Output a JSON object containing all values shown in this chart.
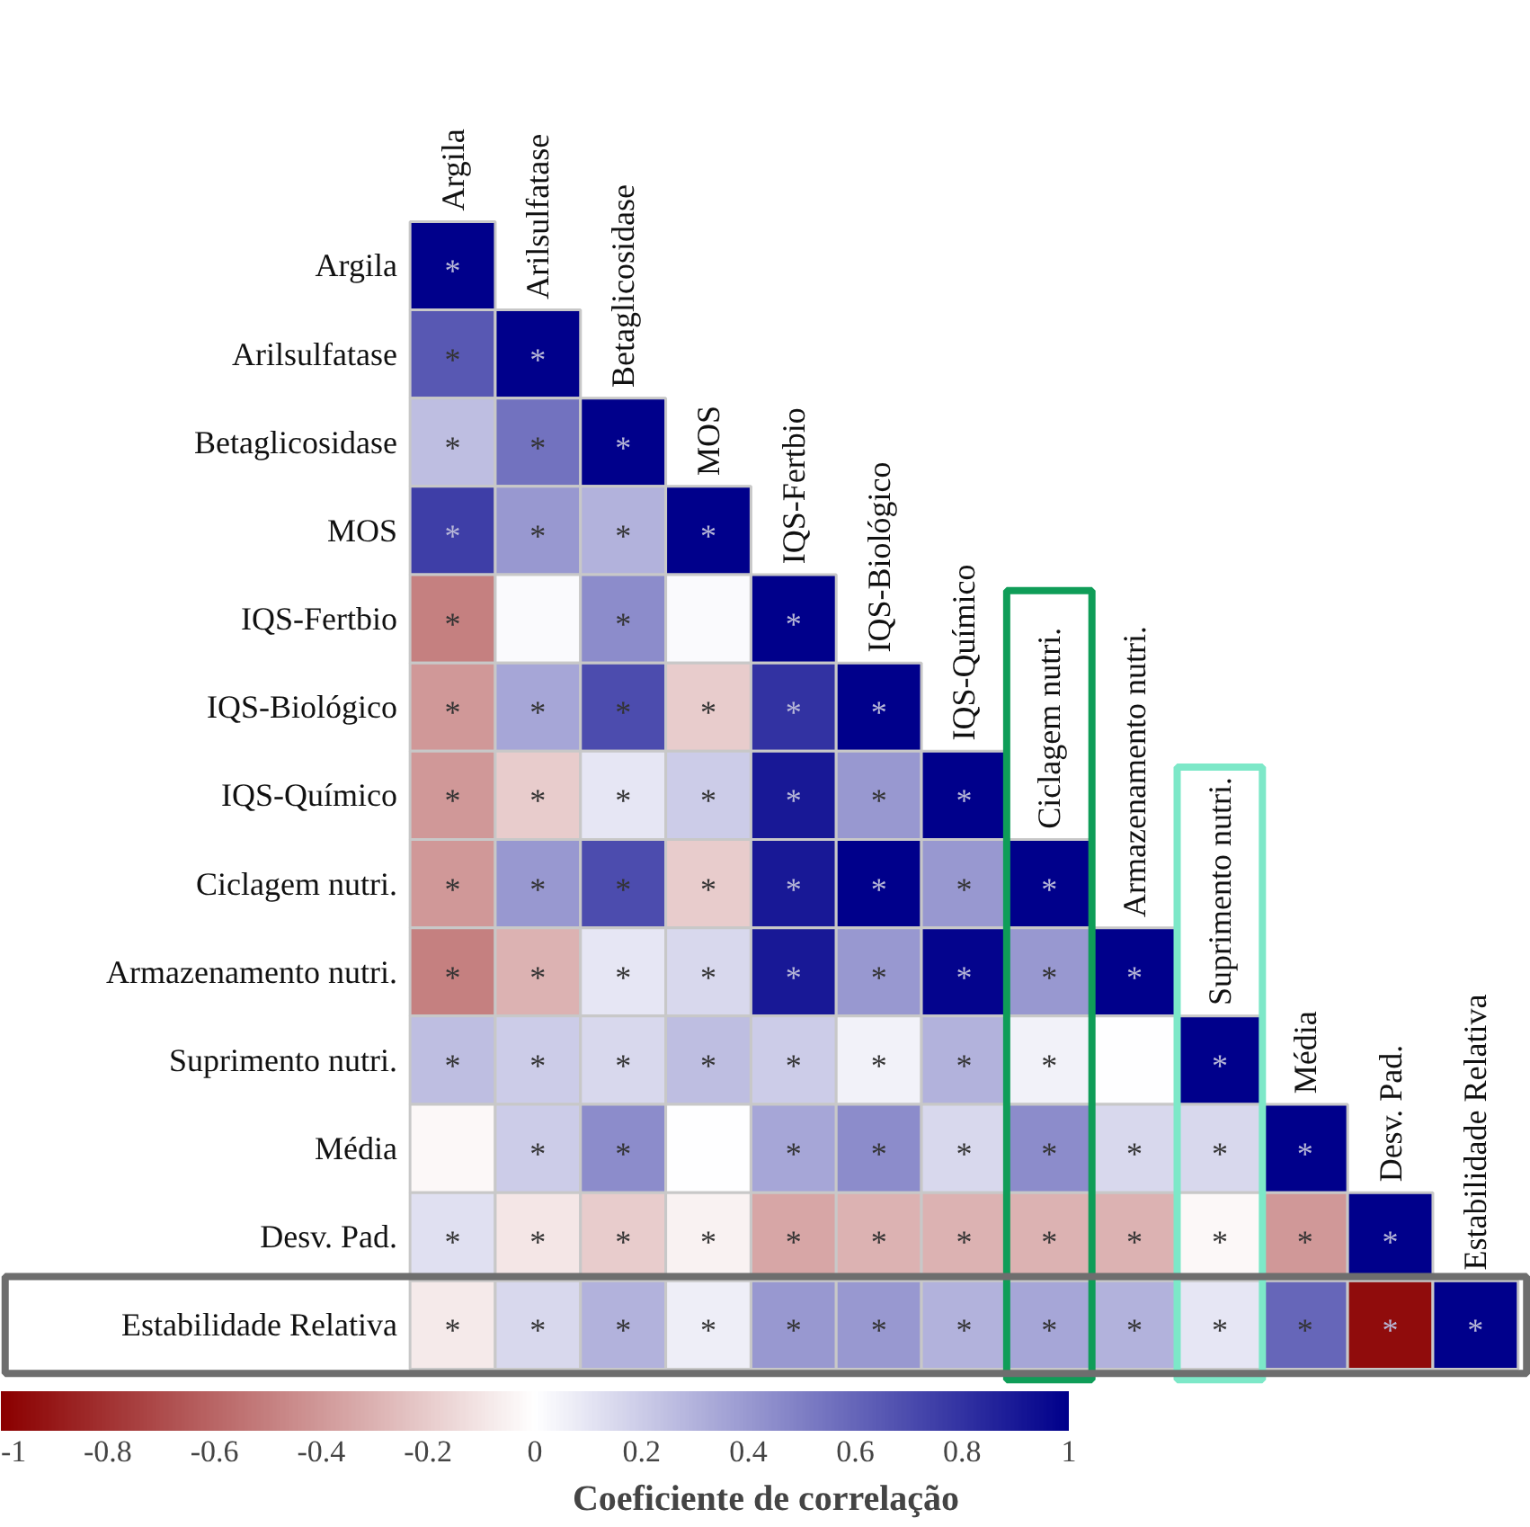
{
  "chart_data": {
    "type": "heatmap",
    "categories": [
      "Argila",
      "Arilsulfatase",
      "Betaglicosidase",
      "MOS",
      "IQS-Fertbio",
      "IQS-Biológico",
      "IQS-Químico",
      "Ciclagem nutri.",
      "Armazenamento nutri.",
      "Suprimento nutri.",
      "Média",
      "Desv. Pad.",
      "Estabilidade Relativa"
    ],
    "y_categories": [
      "Argila",
      "Arilsulfatase",
      "Betaglicosidase",
      "MOS",
      "IQS-Fertbio",
      "IQS-Biológico",
      "IQS-Químico",
      "Ciclagem nutri.",
      "Armazenamento nutri.",
      "Suprimento nutri.",
      "Média",
      "Desv. Pad.",
      "Estabilidade Relativa"
    ],
    "cells": [
      [
        1,
        null,
        null,
        null,
        null,
        null,
        null,
        null,
        null,
        null,
        null,
        null,
        null
      ],
      [
        0.65,
        1,
        null,
        null,
        null,
        null,
        null,
        null,
        null,
        null,
        null,
        null,
        null
      ],
      [
        0.25,
        0.55,
        1,
        null,
        null,
        null,
        null,
        null,
        null,
        null,
        null,
        null,
        null
      ],
      [
        0.75,
        0.4,
        0.3,
        1,
        null,
        null,
        null,
        null,
        null,
        null,
        null,
        null,
        null
      ],
      [
        -0.5,
        0.02,
        0.45,
        0.02,
        1,
        null,
        null,
        null,
        null,
        null,
        null,
        null,
        null
      ],
      [
        -0.4,
        0.35,
        0.7,
        -0.2,
        0.8,
        1,
        null,
        null,
        null,
        null,
        null,
        null,
        null
      ],
      [
        -0.4,
        -0.2,
        0.1,
        0.2,
        0.9,
        0.4,
        1,
        null,
        null,
        null,
        null,
        null,
        null
      ],
      [
        -0.4,
        0.4,
        0.7,
        -0.2,
        0.9,
        1,
        0.4,
        1,
        null,
        null,
        null,
        null,
        null
      ],
      [
        -0.5,
        -0.3,
        0.1,
        0.15,
        0.9,
        0.4,
        0.98,
        0.4,
        1,
        null,
        null,
        null,
        null
      ],
      [
        0.25,
        0.2,
        0.15,
        0.25,
        0.2,
        0.05,
        0.3,
        0.05,
        0,
        1,
        null,
        null,
        null
      ],
      [
        -0.03,
        0.2,
        0.45,
        0,
        0.35,
        0.45,
        0.15,
        0.45,
        0.15,
        0.15,
        1,
        null,
        null
      ],
      [
        0.12,
        -0.1,
        -0.2,
        -0.05,
        -0.35,
        -0.3,
        -0.3,
        -0.3,
        -0.3,
        -0.03,
        -0.4,
        1,
        null
      ],
      [
        -0.08,
        0.15,
        0.3,
        0.07,
        0.4,
        0.4,
        0.3,
        0.35,
        0.3,
        0.1,
        0.6,
        -0.95,
        1
      ]
    ],
    "cell_labels": [
      [
        "*",
        null,
        null,
        null,
        null,
        null,
        null,
        null,
        null,
        null,
        null,
        null,
        null
      ],
      [
        "*",
        "*",
        null,
        null,
        null,
        null,
        null,
        null,
        null,
        null,
        null,
        null,
        null
      ],
      [
        "*",
        "*",
        "*",
        null,
        null,
        null,
        null,
        null,
        null,
        null,
        null,
        null,
        null
      ],
      [
        "*",
        "*",
        "*",
        "*",
        null,
        null,
        null,
        null,
        null,
        null,
        null,
        null,
        null
      ],
      [
        "*",
        null,
        "*",
        null,
        "*",
        null,
        null,
        null,
        null,
        null,
        null,
        null,
        null
      ],
      [
        "*",
        "*",
        "*",
        "*",
        "*",
        "*",
        null,
        null,
        null,
        null,
        null,
        null,
        null
      ],
      [
        "*",
        "*",
        "*",
        "*",
        "*",
        "*",
        "*",
        null,
        null,
        null,
        null,
        null,
        null
      ],
      [
        "*",
        "*",
        "*",
        "*",
        "*",
        "*",
        "*",
        "*",
        null,
        null,
        null,
        null,
        null
      ],
      [
        "*",
        "*",
        "*",
        "*",
        "*",
        "*",
        "*",
        "*",
        "*",
        null,
        null,
        null,
        null
      ],
      [
        "*",
        "*",
        "*",
        "*",
        "*",
        "*",
        "*",
        "*",
        null,
        "*",
        null,
        null,
        null
      ],
      [
        null,
        "*",
        "*",
        null,
        "*",
        "*",
        "*",
        "*",
        "*",
        "*",
        "*",
        null,
        null
      ],
      [
        "*",
        "*",
        "*",
        "*",
        "*",
        "*",
        "*",
        "*",
        "*",
        "*",
        "*",
        "*",
        null
      ],
      [
        "*",
        "*",
        "*",
        "*",
        "*",
        "*",
        "*",
        "*",
        "*",
        "*",
        "*",
        "*",
        "*"
      ]
    ],
    "clim": [
      -1,
      1
    ],
    "cticks": [
      -1,
      -0.8,
      -0.6,
      -0.4,
      -0.2,
      0,
      0.2,
      0.4,
      0.6,
      0.8,
      1
    ],
    "clabel": "Coeficiente de correlação"
  }
}
